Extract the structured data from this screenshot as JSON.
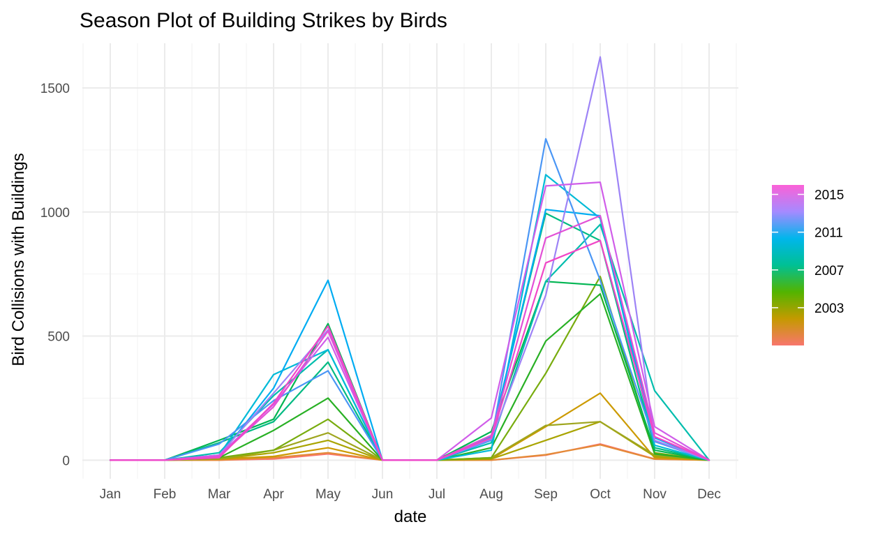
{
  "chart_data": {
    "type": "line",
    "title": "Season Plot of Building Strikes by Birds",
    "xlabel": "date",
    "ylabel": "Bird Collisions with Buildings",
    "categories": [
      "Jan",
      "Feb",
      "Mar",
      "Apr",
      "May",
      "Jun",
      "Jul",
      "Aug",
      "Sep",
      "Oct",
      "Nov",
      "Dec"
    ],
    "ylim": [
      -75,
      1680
    ],
    "y_ticks": [
      0,
      500,
      1000,
      1500
    ],
    "y_tick_labels": [
      "0",
      "500",
      "1000",
      "1500"
    ],
    "grid": true,
    "legend": {
      "position": "right",
      "type": "colorbar",
      "labels": [
        "2015",
        "2011",
        "2007",
        "2003"
      ],
      "label_years": [
        2015,
        2011,
        2007,
        2003
      ],
      "range": [
        1999,
        2016
      ],
      "colors": [
        "#f8766d",
        "#c49a00",
        "#53b400",
        "#00c094",
        "#00b6eb",
        "#a58aff",
        "#fb61d7"
      ]
    },
    "series": [
      {
        "year": 2000,
        "color": "#f8766d",
        "values": [
          0,
          0,
          0,
          5,
          25,
          0,
          0,
          0,
          20,
          65,
          5,
          0
        ]
      },
      {
        "year": 2001,
        "color": "#e48a37",
        "values": [
          0,
          0,
          0,
          10,
          30,
          0,
          0,
          0,
          22,
          62,
          4,
          0
        ]
      },
      {
        "year": 2002,
        "color": "#cc9a00",
        "values": [
          0,
          0,
          5,
          15,
          50,
          0,
          0,
          5,
          135,
          270,
          10,
          0
        ]
      },
      {
        "year": 2003,
        "color": "#a9a400",
        "values": [
          0,
          0,
          5,
          30,
          80,
          0,
          0,
          5,
          80,
          155,
          15,
          0
        ]
      },
      {
        "year": 2004,
        "color": "#9fa61f",
        "values": [
          0,
          0,
          5,
          40,
          110,
          0,
          0,
          10,
          140,
          155,
          20,
          0
        ]
      },
      {
        "year": 2005,
        "color": "#78ac0e",
        "values": [
          0,
          0,
          10,
          40,
          165,
          0,
          0,
          10,
          350,
          740,
          30,
          0
        ]
      },
      {
        "year": 2006,
        "color": "#28b024",
        "values": [
          0,
          0,
          10,
          120,
          250,
          0,
          0,
          50,
          480,
          670,
          25,
          0
        ]
      },
      {
        "year": 2007,
        "color": "#00b552",
        "values": [
          0,
          0,
          80,
          165,
          550,
          0,
          0,
          115,
          720,
          705,
          40,
          0
        ]
      },
      {
        "year": 2008,
        "color": "#00ba82",
        "values": [
          0,
          0,
          70,
          155,
          395,
          0,
          0,
          100,
          995,
          885,
          50,
          0
        ]
      },
      {
        "year": 2009,
        "color": "#00bdad",
        "values": [
          0,
          0,
          30,
          260,
          445,
          0,
          0,
          70,
          720,
          950,
          280,
          0
        ]
      },
      {
        "year": 2010,
        "color": "#00bad7",
        "values": [
          0,
          0,
          20,
          345,
          445,
          0,
          0,
          40,
          1150,
          975,
          60,
          0
        ]
      },
      {
        "year": 2011,
        "color": "#00acf2",
        "values": [
          0,
          0,
          15,
          290,
          725,
          0,
          0,
          95,
          1010,
          985,
          90,
          0
        ]
      },
      {
        "year": 2012,
        "color": "#4a96f5",
        "values": [
          0,
          0,
          65,
          240,
          360,
          0,
          0,
          80,
          1295,
          725,
          75,
          0
        ]
      },
      {
        "year": 2013,
        "color": "#9d83f6",
        "values": [
          0,
          0,
          20,
          270,
          525,
          0,
          0,
          85,
          665,
          1625,
          80,
          0
        ]
      },
      {
        "year": 2014,
        "color": "#d05de9",
        "values": [
          0,
          0,
          20,
          225,
          495,
          0,
          0,
          170,
          1105,
          1120,
          135,
          0
        ]
      },
      {
        "year": 2015,
        "color": "#e250d6",
        "values": [
          0,
          0,
          15,
          215,
          520,
          0,
          0,
          100,
          895,
          985,
          110,
          0
        ]
      },
      {
        "year": 2016,
        "color": "#f147c7",
        "values": [
          0,
          0,
          10,
          230,
          540,
          0,
          0,
          90,
          795,
          885,
          95,
          0
        ]
      }
    ]
  }
}
